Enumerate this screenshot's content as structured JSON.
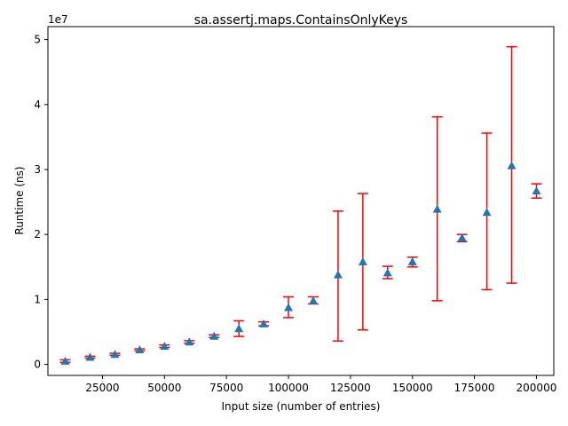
{
  "chart_data": {
    "type": "scatter",
    "title": "sa.assertj.maps.ContainsOnlyKeys",
    "xlabel": "Input size (number of entries)",
    "ylabel": "Runtime (ns)",
    "y_scale_label": "1e7",
    "xlim": [
      3000,
      207000
    ],
    "ylim": [
      -1700000,
      52000000
    ],
    "x_ticks": [
      25000,
      50000,
      75000,
      100000,
      125000,
      150000,
      175000,
      200000
    ],
    "x_tick_labels": [
      "25000",
      "50000",
      "75000",
      "100000",
      "125000",
      "150000",
      "175000",
      "200000"
    ],
    "y_ticks": [
      0,
      10000000,
      20000000,
      30000000,
      40000000,
      50000000
    ],
    "y_tick_labels": [
      "0",
      "1",
      "2",
      "3",
      "4",
      "5"
    ],
    "marker": "triangle",
    "marker_color": "#1f77b4",
    "errorbar_color": "#ff0000",
    "grid": false,
    "series": [
      {
        "points": [
          {
            "x": 10000,
            "y": 500000,
            "low": 300000,
            "high": 700000
          },
          {
            "x": 20000,
            "y": 1100000,
            "low": 950000,
            "high": 1250000
          },
          {
            "x": 30000,
            "y": 1550000,
            "low": 1400000,
            "high": 1700000
          },
          {
            "x": 40000,
            "y": 2250000,
            "low": 2100000,
            "high": 2400000
          },
          {
            "x": 50000,
            "y": 2800000,
            "low": 2600000,
            "high": 3000000
          },
          {
            "x": 60000,
            "y": 3450000,
            "low": 3250000,
            "high": 3650000
          },
          {
            "x": 70000,
            "y": 4350000,
            "low": 4150000,
            "high": 4550000
          },
          {
            "x": 80000,
            "y": 5500000,
            "low": 4300000,
            "high": 6700000
          },
          {
            "x": 90000,
            "y": 6250000,
            "low": 5950000,
            "high": 6550000
          },
          {
            "x": 100000,
            "y": 8750000,
            "low": 7200000,
            "high": 10400000
          },
          {
            "x": 110000,
            "y": 9800000,
            "low": 9300000,
            "high": 10400000
          },
          {
            "x": 120000,
            "y": 13800000,
            "low": 3600000,
            "high": 23600000
          },
          {
            "x": 130000,
            "y": 15800000,
            "low": 5300000,
            "high": 26300000
          },
          {
            "x": 140000,
            "y": 14100000,
            "low": 13200000,
            "high": 15100000
          },
          {
            "x": 150000,
            "y": 15800000,
            "low": 15000000,
            "high": 16500000
          },
          {
            "x": 160000,
            "y": 23900000,
            "low": 9800000,
            "high": 38100000
          },
          {
            "x": 170000,
            "y": 19500000,
            "low": 18900000,
            "high": 20000000
          },
          {
            "x": 180000,
            "y": 23400000,
            "low": 11500000,
            "high": 35600000
          },
          {
            "x": 190000,
            "y": 30600000,
            "low": 12500000,
            "high": 48900000
          },
          {
            "x": 200000,
            "y": 26700000,
            "low": 25600000,
            "high": 27800000
          }
        ]
      }
    ]
  }
}
